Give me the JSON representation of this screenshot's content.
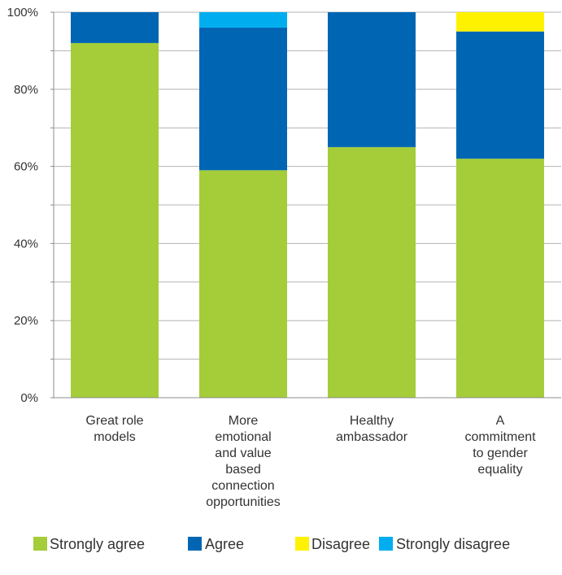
{
  "chart_data": {
    "type": "bar",
    "stacked": true,
    "categories": [
      [
        "Great role",
        "models"
      ],
      [
        "More",
        "emotional",
        "and value",
        "based",
        "connection",
        "opportunities"
      ],
      [
        "Healthy",
        "ambassador"
      ],
      [
        "A",
        "commitment",
        "to gender",
        "equality"
      ]
    ],
    "series": [
      {
        "name": "Strongly agree",
        "color": "#a4cd39",
        "values": [
          92,
          59,
          65,
          62
        ]
      },
      {
        "name": "Agree",
        "color": "#0066b3",
        "values": [
          8,
          37,
          35,
          33
        ]
      },
      {
        "name": "Disagree",
        "color": "#fff200",
        "values": [
          0,
          0,
          0,
          5
        ]
      },
      {
        "name": "Strongly disagree",
        "color": "#00aeef",
        "values": [
          0,
          4,
          0,
          0
        ]
      }
    ],
    "ylim": [
      0,
      100
    ],
    "yticks": [
      0,
      20,
      40,
      60,
      80,
      100
    ],
    "ytick_labels": [
      "0%",
      "20%",
      "40%",
      "60%",
      "80%",
      "100%"
    ],
    "grid": true,
    "legend_position": "bottom",
    "title": "",
    "xlabel": "",
    "ylabel": ""
  }
}
